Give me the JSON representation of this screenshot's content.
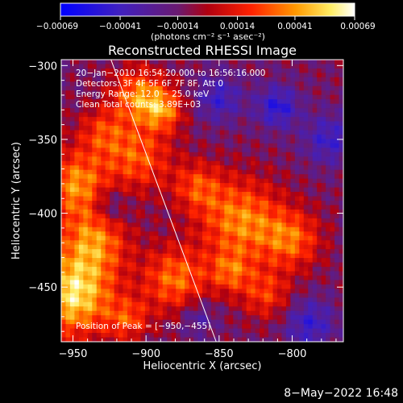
{
  "chart_data": {
    "type": "heatmap",
    "title": "Reconstructed RHESSI Image",
    "xlabel": "Heliocentric X (arcsec)",
    "ylabel": "Heliocentric Y (arcsec)",
    "xlim": [
      -958,
      -765
    ],
    "ylim": [
      -487,
      -296
    ],
    "xticks": [
      -950,
      -900,
      -850,
      -800
    ],
    "yticks": [
      -300,
      -350,
      -400,
      -450
    ],
    "xtick_labels": [
      "−950",
      "−900",
      "−850",
      "−800"
    ],
    "ytick_labels": [
      "−300",
      "−350",
      "−400",
      "−450"
    ],
    "colorbar": {
      "label": "(photons cm⁻² s⁻¹ asec⁻²)",
      "min": -0.00069,
      "max": 0.00069,
      "ticks": [
        -0.00069,
        -0.00041,
        -0.00014,
        0.00014,
        0.00041,
        0.00069
      ],
      "tick_labels": [
        "−0.00069",
        "−0.00041",
        "−0.00014",
        "0.00014",
        "0.00041",
        "0.00069"
      ],
      "colors": [
        "#0000ff",
        "#5a2a8a",
        "#8a1a3a",
        "#ff0000",
        "#ff9900",
        "#ffffff"
      ]
    },
    "annotations": [
      "20−Jan−2010 16:54:20.000 to 16:56:16.000",
      "Detectors: 3F 4F 5F 6F 7F 8F, Att 0",
      "Energy Range: 12.0 − 25.0 keV",
      "Clean    Total counts: 3.89E+03"
    ],
    "peak_label": "Position of Peak = [−950,−455]",
    "limb_line": [
      [
        -924,
        -296
      ],
      [
        -852,
        -487
      ]
    ],
    "blobs": [
      {
        "x": -950,
        "y": -455,
        "sigma": 20,
        "amp": 0.00069
      },
      {
        "x": -948,
        "y": -380,
        "sigma": 16,
        "amp": 0.0005
      },
      {
        "x": -935,
        "y": -418,
        "sigma": 16,
        "amp": 0.00045
      },
      {
        "x": -905,
        "y": -320,
        "sigma": 13,
        "amp": 0.00048
      },
      {
        "x": -888,
        "y": -330,
        "sigma": 10,
        "amp": 0.00042
      },
      {
        "x": -905,
        "y": -362,
        "sigma": 16,
        "amp": 0.0004
      },
      {
        "x": -865,
        "y": -382,
        "sigma": 12,
        "amp": 0.00033
      },
      {
        "x": -880,
        "y": -445,
        "sigma": 16,
        "amp": 0.00045
      },
      {
        "x": -835,
        "y": -405,
        "sigma": 20,
        "amp": 0.0005
      },
      {
        "x": -800,
        "y": -418,
        "sigma": 14,
        "amp": 0.0004
      },
      {
        "x": -818,
        "y": -455,
        "sigma": 12,
        "amp": 0.00033
      },
      {
        "x": -842,
        "y": -440,
        "sigma": 10,
        "amp": 0.00034
      },
      {
        "x": -912,
        "y": -472,
        "sigma": 10,
        "amp": 0.00032
      },
      {
        "x": -930,
        "y": -345,
        "sigma": 12,
        "amp": 0.0003
      },
      {
        "x": -810,
        "y": -328,
        "sigma": 10,
        "amp": -0.00038
      },
      {
        "x": -850,
        "y": -322,
        "sigma": 11,
        "amp": -0.0003
      },
      {
        "x": -775,
        "y": -350,
        "sigma": 12,
        "amp": -0.0003
      },
      {
        "x": -788,
        "y": -475,
        "sigma": 12,
        "amp": -0.00032
      },
      {
        "x": -925,
        "y": -395,
        "sigma": 9,
        "amp": -0.00025
      },
      {
        "x": -865,
        "y": -470,
        "sigma": 9,
        "amp": -0.00022
      }
    ],
    "background": -0.00012
  },
  "footer_date": "8−May−2022 16:48"
}
